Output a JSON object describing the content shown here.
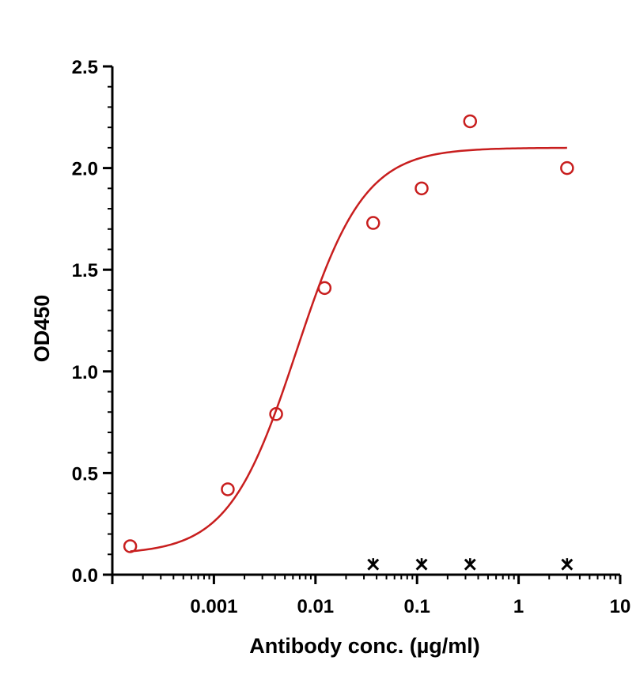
{
  "chart_data": {
    "type": "scatter",
    "xlabel": "Antibody conc. (µg/ml)",
    "ylabel": "OD450",
    "x_scale": "log",
    "xlim": [
      0.0001,
      10
    ],
    "ylim": [
      0,
      2.5
    ],
    "grid": false,
    "x_ticks": [
      {
        "value": 0.001,
        "label": "0.001"
      },
      {
        "value": 0.01,
        "label": "0.01"
      },
      {
        "value": 0.1,
        "label": "0.1"
      },
      {
        "value": 1,
        "label": "1"
      },
      {
        "value": 10,
        "label": "10"
      }
    ],
    "y_ticks": [
      {
        "value": 0,
        "label": "0.0"
      },
      {
        "value": 0.5,
        "label": "0.5"
      },
      {
        "value": 1.0,
        "label": "1.0"
      },
      {
        "value": 1.5,
        "label": "1.5"
      },
      {
        "value": 2.0,
        "label": "2.0"
      },
      {
        "value": 2.5,
        "label": "2.5"
      }
    ],
    "series": [
      {
        "color": "#c81e1e",
        "marker": "circle",
        "x": [
          0.00015,
          0.00137,
          0.0041,
          0.0123,
          0.037,
          0.111,
          0.333,
          3.0
        ],
        "y": [
          0.14,
          0.42,
          0.79,
          1.41,
          1.73,
          1.9,
          2.23,
          2.0
        ],
        "fit": {
          "model": "4PL",
          "bottom": 0.1,
          "top": 2.1,
          "ec50": 0.0065,
          "hill": 1.3
        }
      },
      {
        "color": "#000000",
        "marker": "star",
        "x": [
          0.037,
          0.111,
          0.333,
          3.0
        ],
        "y": [
          0.05,
          0.05,
          0.05,
          0.05
        ]
      }
    ]
  }
}
